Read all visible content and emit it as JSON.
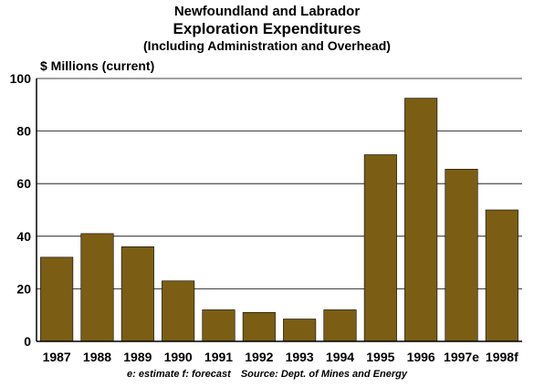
{
  "titles": {
    "line1": "Newfoundland and Labrador",
    "line2": "Exploration Expenditures",
    "line3": "(Including Administration and Overhead)"
  },
  "unit_label": "$ Millions (current)",
  "footnote": {
    "legend": "e: estimate f: forecast",
    "source": "Source: Dept. of Mines and Energy"
  },
  "colors": {
    "bar": "#7b5e14",
    "grid": "#000000"
  },
  "chart_data": {
    "type": "bar",
    "categories": [
      "1987",
      "1988",
      "1989",
      "1990",
      "1991",
      "1992",
      "1993",
      "1994",
      "1995",
      "1996",
      "1997e",
      "1998f"
    ],
    "values": [
      32,
      41,
      36,
      23,
      12,
      11,
      8.5,
      12,
      71,
      92.5,
      65.5,
      50
    ],
    "yticks": [
      0,
      20,
      40,
      60,
      80,
      100
    ],
    "ylim": [
      0,
      100
    ],
    "grid": true
  }
}
